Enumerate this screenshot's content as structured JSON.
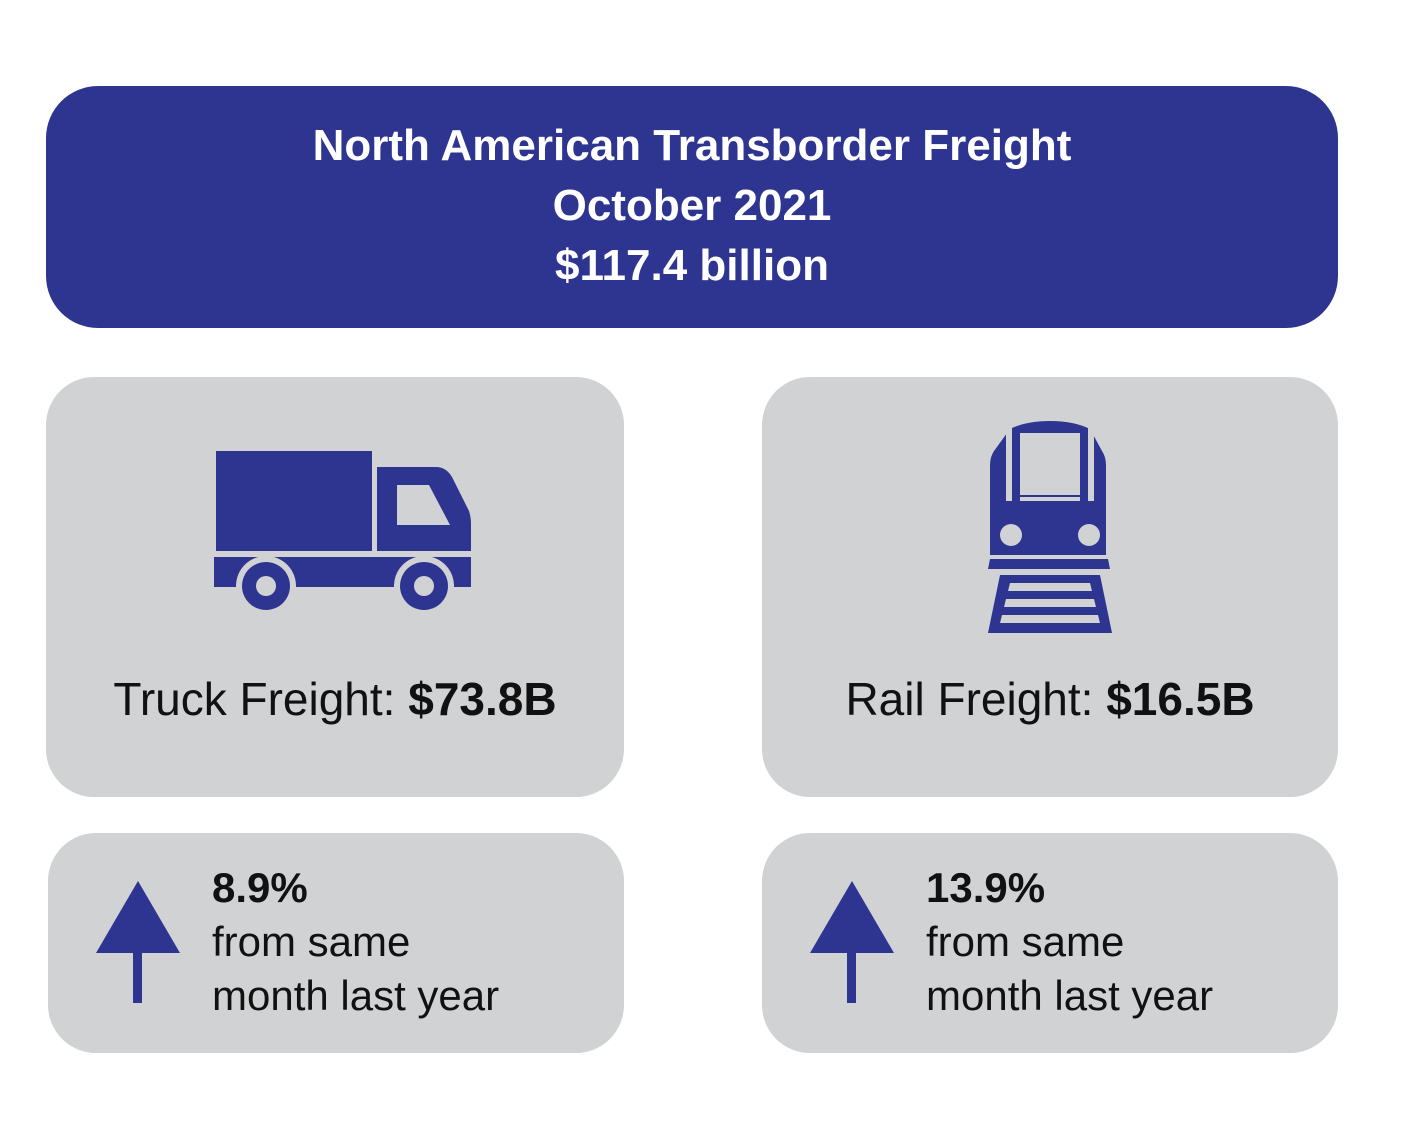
{
  "header": {
    "title": "North American Transborder Freight",
    "period": "October 2021",
    "total": "$117.4 billion"
  },
  "colors": {
    "primary": "#2e3590",
    "card": "#d1d2d4"
  },
  "modes": [
    {
      "label": "Truck Freight:",
      "value": "$73.8B",
      "icon": "truck-icon",
      "change": "8.9%",
      "change_line1": "from same",
      "change_line2": "month last year",
      "direction": "up"
    },
    {
      "label": "Rail Freight:",
      "value": "$16.5B",
      "icon": "train-icon",
      "change": "13.9%",
      "change_line1": "from same",
      "change_line2": "month last year",
      "direction": "up"
    }
  ]
}
